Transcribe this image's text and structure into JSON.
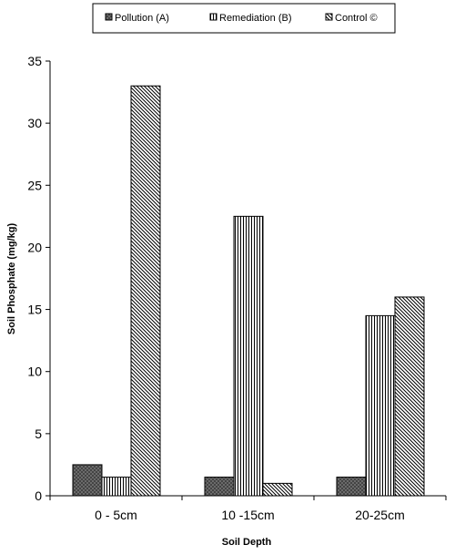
{
  "chart_data": {
    "type": "bar",
    "title": "",
    "xlabel": "Soil Depth",
    "ylabel": "Soil Phosphate  (mg/kg)",
    "categories": [
      "0 - 5cm",
      "10 -15cm",
      "20-25cm"
    ],
    "series": [
      {
        "name": "Pollution  (A)",
        "values": [
          2.5,
          1.5,
          1.5
        ],
        "pattern": "dark-crosshatch",
        "color": "#808080"
      },
      {
        "name": "Remediation  (B)",
        "values": [
          1.5,
          22.5,
          14.5
        ],
        "pattern": "vertical-lines",
        "color": "#000000"
      },
      {
        "name": "Control ©",
        "values": [
          33,
          1,
          16
        ],
        "pattern": "diagonal-lines",
        "color": "#000000"
      }
    ],
    "ylim": [
      0,
      35
    ],
    "yticks": [
      0,
      5,
      10,
      15,
      20,
      25,
      30,
      35
    ],
    "grid": false,
    "legend_position": "top"
  }
}
